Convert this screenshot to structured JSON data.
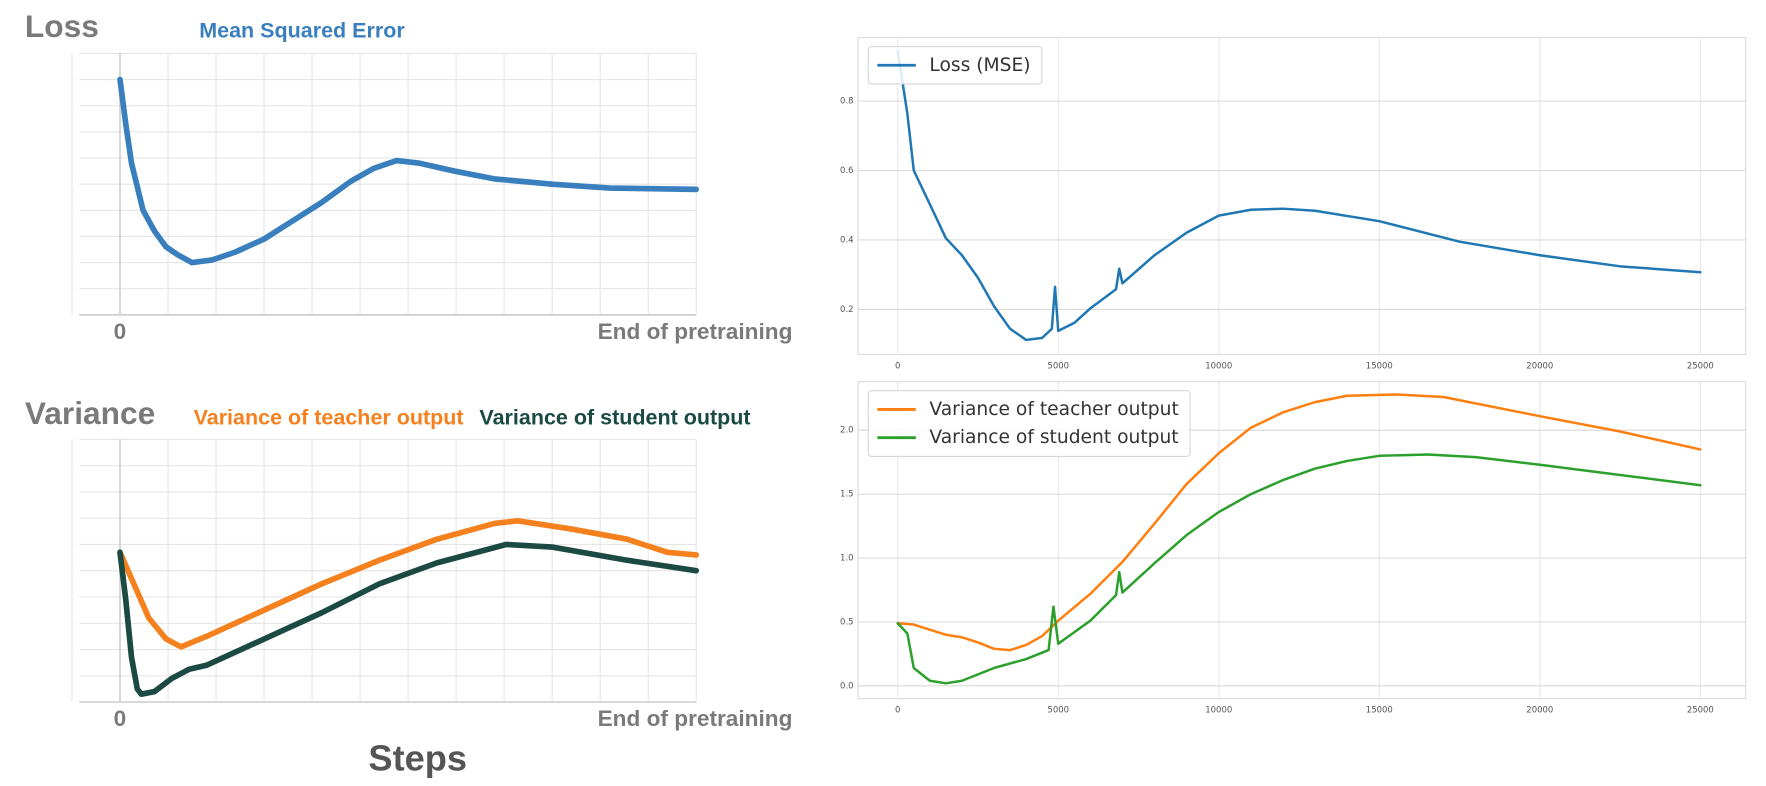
{
  "chart_data": [
    {
      "type": "line",
      "title": "Loss",
      "legend": "top",
      "grid": true,
      "xticks": [
        0,
        {
          "value": 100,
          "label": "End of pretraining"
        }
      ],
      "xlim": [
        0,
        100
      ],
      "ylim": [
        0,
        10
      ],
      "x": [
        0,
        1,
        2,
        4,
        6,
        8,
        10,
        12.5,
        16,
        20,
        25,
        30,
        35,
        40,
        44,
        48,
        52,
        58,
        65,
        75,
        85,
        100
      ],
      "series": [
        {
          "name": "Mean Squared Error",
          "color": "#3a7fbd",
          "values": [
            9.0,
            7.3,
            5.8,
            4.0,
            3.2,
            2.6,
            2.3,
            2.0,
            2.1,
            2.4,
            2.9,
            3.6,
            4.3,
            5.1,
            5.6,
            5.9,
            5.8,
            5.5,
            5.2,
            5.0,
            4.85,
            4.8
          ]
        }
      ]
    },
    {
      "type": "line",
      "title": "Variance",
      "xlabel": "Steps",
      "legend": "top",
      "grid": true,
      "xticks": [
        0,
        {
          "value": 100,
          "label": "End of pretraining"
        }
      ],
      "xlim": [
        0,
        100
      ],
      "ylim": [
        0,
        10
      ],
      "series": [
        {
          "name": "Variance of teacher output",
          "color": "#f5801e",
          "x": [
            0,
            2,
            5,
            8,
            10.6,
            15,
            25,
            35,
            45,
            55,
            65,
            69,
            78,
            88,
            95,
            100
          ],
          "values": [
            5.7,
            4.7,
            3.2,
            2.4,
            2.1,
            2.5,
            3.5,
            4.5,
            5.4,
            6.2,
            6.8,
            6.9,
            6.6,
            6.2,
            5.7,
            5.6
          ]
        },
        {
          "name": "Variance of student output",
          "color": "#1b4a42",
          "x": [
            0,
            1,
            2,
            3,
            3.7,
            6,
            9,
            12,
            15,
            25,
            35,
            45,
            55,
            67,
            75,
            88,
            100
          ],
          "values": [
            5.7,
            3.9,
            1.7,
            0.5,
            0.3,
            0.4,
            0.9,
            1.25,
            1.4,
            2.4,
            3.4,
            4.5,
            5.3,
            6.0,
            5.9,
            5.4,
            5.0
          ]
        }
      ]
    },
    {
      "type": "line",
      "legend": "upper left",
      "grid": true,
      "xlim": [
        -1234,
        26410
      ],
      "ylim": [
        0.07,
        0.983
      ],
      "xticks": [
        0,
        5000,
        10000,
        15000,
        20000,
        25000
      ],
      "yticks": [
        0.2,
        0.4,
        0.6,
        0.8
      ],
      "x": [
        0,
        300,
        500,
        1000,
        1500,
        2000,
        2500,
        3000,
        3500,
        4000,
        4500,
        4800,
        4900,
        5000,
        5500,
        6000,
        6800,
        6900,
        7000,
        8000,
        9000,
        10000,
        11000,
        12000,
        13000,
        15000,
        17500,
        20000,
        22500,
        25000
      ],
      "series": [
        {
          "name": "Loss (MSE)",
          "color": "#1f77b4",
          "values": [
            0.944,
            0.764,
            0.6,
            0.503,
            0.405,
            0.356,
            0.291,
            0.209,
            0.144,
            0.112,
            0.118,
            0.144,
            0.265,
            0.138,
            0.161,
            0.203,
            0.258,
            0.317,
            0.275,
            0.356,
            0.421,
            0.47,
            0.487,
            0.49,
            0.484,
            0.454,
            0.395,
            0.356,
            0.324,
            0.307
          ]
        }
      ]
    },
    {
      "type": "line",
      "legend": "upper left",
      "grid": true,
      "xlim": [
        -1234,
        26410
      ],
      "ylim": [
        -0.1,
        2.38
      ],
      "xticks": [
        0,
        5000,
        10000,
        15000,
        20000,
        25000
      ],
      "yticks": [
        {
          "value": 0,
          "label": "0.0"
        },
        0.5,
        {
          "value": 1,
          "label": "1.0"
        },
        1.5,
        {
          "value": 2,
          "label": "2.0"
        }
      ],
      "series": [
        {
          "name": "Variance of teacher output",
          "color": "#ff7f0e",
          "x": [
            0,
            500,
            1000,
            1500,
            2000,
            2500,
            3000,
            3500,
            4000,
            4500,
            5000,
            6000,
            7000,
            8000,
            9000,
            10000,
            11000,
            12000,
            13000,
            14000,
            15500,
            17000,
            20000,
            22500,
            25000
          ],
          "values": [
            0.49,
            0.48,
            0.44,
            0.4,
            0.38,
            0.34,
            0.29,
            0.28,
            0.32,
            0.39,
            0.51,
            0.72,
            0.97,
            1.27,
            1.58,
            1.82,
            2.02,
            2.14,
            2.22,
            2.27,
            2.28,
            2.26,
            2.11,
            1.99,
            1.85
          ]
        },
        {
          "name": "Variance of student output",
          "color": "#2ca02c",
          "x": [
            0,
            300,
            500,
            1000,
            1500,
            2000,
            3000,
            4000,
            4700,
            4850,
            5000,
            6000,
            6800,
            6900,
            7000,
            8000,
            9000,
            10000,
            11000,
            12000,
            13000,
            14000,
            15000,
            16500,
            18000,
            20000,
            22500,
            25000
          ],
          "values": [
            0.49,
            0.41,
            0.14,
            0.04,
            0.02,
            0.04,
            0.14,
            0.21,
            0.28,
            0.62,
            0.33,
            0.51,
            0.71,
            0.89,
            0.73,
            0.96,
            1.18,
            1.36,
            1.5,
            1.61,
            1.7,
            1.76,
            1.8,
            1.81,
            1.79,
            1.73,
            1.65,
            1.57
          ]
        }
      ]
    }
  ]
}
